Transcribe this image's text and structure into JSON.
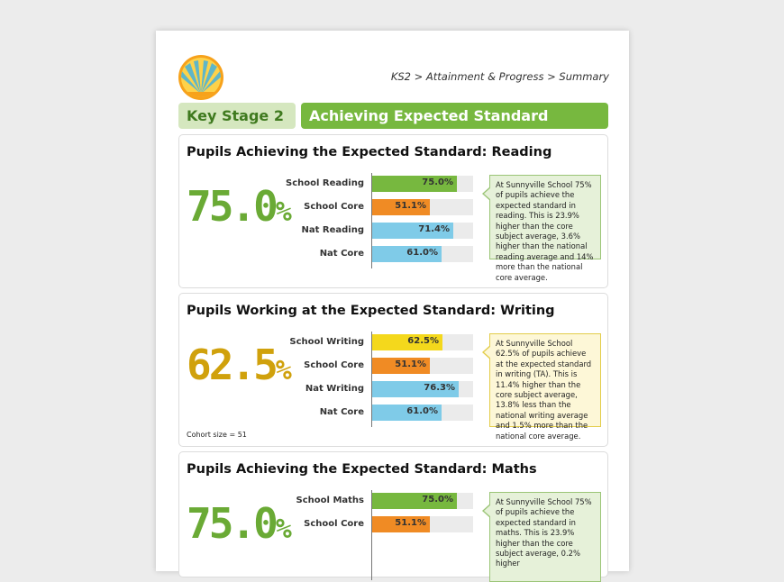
{
  "header": {
    "breadcrumb": "KS2 > Attainment & Progress > Summary",
    "key_stage_label": "Key Stage 2",
    "section_label": "Achieving Expected Standard",
    "logo_icon": "sunburst-logo-icon"
  },
  "colors": {
    "school_reading": "#77b83f",
    "school_writing": "#f4d81c",
    "school_maths": "#77b83f",
    "school_core": "#f08b24",
    "national": "#7fcbe8",
    "big_green": "#6aaa35",
    "big_gold": "#d0a10c"
  },
  "sections": [
    {
      "title": "Pupils Achieving the Expected Standard: Reading",
      "headline": "75.0",
      "headline_suffix": "%",
      "note": "At Sunnyville School 75% of pupils achieve the expected standard in reading. This is 23.9% higher than the core subject average, 3.6% higher than the national reading average and 14% more than the national core average.",
      "rows": [
        {
          "label": "School Reading",
          "value": 75.0,
          "value_label": "75.0%"
        },
        {
          "label": "School Core",
          "value": 51.1,
          "value_label": "51.1%"
        },
        {
          "label": "Nat Reading",
          "value": 71.4,
          "value_label": "71.4%"
        },
        {
          "label": "Nat Core",
          "value": 61.0,
          "value_label": "61.0%"
        }
      ]
    },
    {
      "title": "Pupils Working at the Expected Standard: Writing",
      "headline": "62.5",
      "headline_suffix": "%",
      "cohort": "Cohort size = 51",
      "note": "At Sunnyville School 62.5% of pupils achieve at the expected standard in writing (TA). This is 11.4% higher than the core subject average, 13.8% less than the national writing average and 1.5% more than the national core average.",
      "rows": [
        {
          "label": "School Writing",
          "value": 62.5,
          "value_label": "62.5%"
        },
        {
          "label": "School Core",
          "value": 51.1,
          "value_label": "51.1%"
        },
        {
          "label": "Nat Writing",
          "value": 76.3,
          "value_label": "76.3%"
        },
        {
          "label": "Nat Core",
          "value": 61.0,
          "value_label": "61.0%"
        }
      ]
    },
    {
      "title": "Pupils Achieving the Expected Standard: Maths",
      "headline": "75.0",
      "headline_suffix": "%",
      "note": "At Sunnyville School 75% of pupils achieve the expected standard in maths. This is 23.9% higher than the core subject average, 0.2% higher",
      "rows": [
        {
          "label": "School Maths",
          "value": 75.0,
          "value_label": "75.0%"
        },
        {
          "label": "School Core",
          "value": 51.1,
          "value_label": "51.1%"
        }
      ]
    }
  ]
}
